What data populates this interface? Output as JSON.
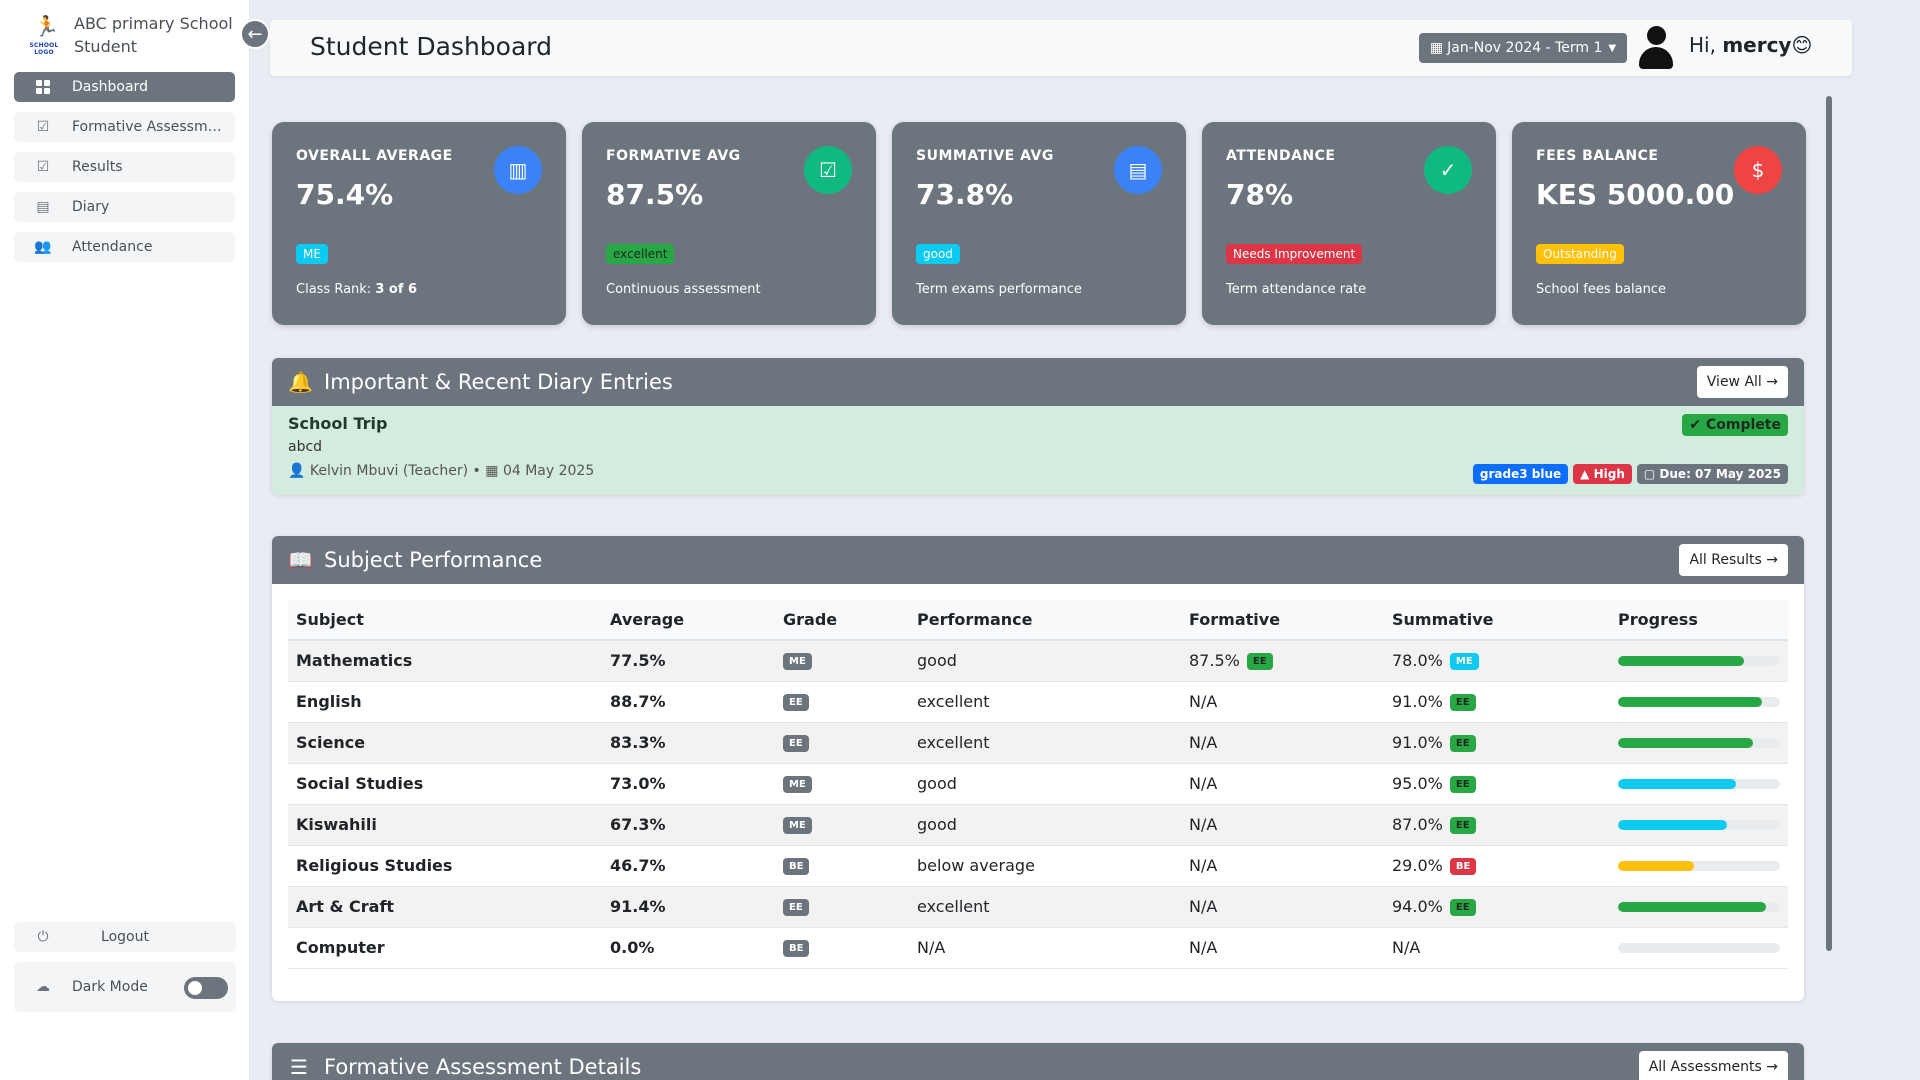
{
  "sidebar": {
    "school_name": "ABC primary School",
    "role": "Student",
    "logo_text": "SCHOOL LOGO",
    "items": [
      {
        "label": "Dashboard",
        "icon": "grid-icon"
      },
      {
        "label": "Formative Assessments",
        "icon": "checklist-icon"
      },
      {
        "label": "Results",
        "icon": "checklist-icon"
      },
      {
        "label": "Diary",
        "icon": "notebook-icon"
      },
      {
        "label": "Attendance",
        "icon": "user-list-icon"
      }
    ],
    "logout_label": "Logout",
    "dark_mode_label": "Dark Mode"
  },
  "header": {
    "title": "Student Dashboard",
    "term_label": "Jan-Nov 2024 - Term 1",
    "greeting_prefix": "Hi,",
    "user_name": "mercy",
    "emoji": "😊"
  },
  "cards": [
    {
      "label": "OVERALL AVERAGE",
      "value": "75.4%",
      "badge": "ME",
      "badge_color": "#0dcaf0",
      "note_prefix": "Class Rank: ",
      "note_strong": "3 of 6",
      "icon_color": "#3b82f6",
      "icon": "clipboard-chart-icon"
    },
    {
      "label": "FORMATIVE AVG",
      "value": "87.5%",
      "badge": "excellent",
      "badge_color": "#28a745",
      "note_prefix": "Continuous assessment",
      "note_strong": "",
      "icon_color": "#10b981",
      "icon": "clipboard-check-icon"
    },
    {
      "label": "SUMMATIVE AVG",
      "value": "73.8%",
      "badge": "good",
      "badge_color": "#0dcaf0",
      "note_prefix": "Term exams performance",
      "note_strong": "",
      "icon_color": "#3b82f6",
      "icon": "journal-icon"
    },
    {
      "label": "ATTENDANCE",
      "value": "78%",
      "badge": "Needs Improvement",
      "badge_color": "#dc3545",
      "note_prefix": "Term attendance rate",
      "note_strong": "",
      "icon_color": "#10b981",
      "icon": "calendar-check-icon"
    },
    {
      "label": "FEES BALANCE",
      "value": "KES 5000.00",
      "badge": "Outstanding",
      "badge_color": "#ffc107",
      "note_prefix": "School fees balance",
      "note_strong": "",
      "icon_color": "#ef4444",
      "icon": "money-icon"
    }
  ],
  "diary": {
    "title": "Important & Recent Diary Entries",
    "view_all_label": "View All →",
    "entry": {
      "title": "School Trip",
      "description": "abcd",
      "author": "Kelvin Mbuvi (Teacher)",
      "date": "04 May 2025",
      "status": "Complete",
      "tags": [
        {
          "label": "grade3 blue",
          "color": "#0d6efd"
        },
        {
          "label": "High",
          "color": "#dc3545"
        },
        {
          "label": "Due: 07 May 2025",
          "color": "#6c757d"
        }
      ]
    }
  },
  "subjects": {
    "title": "Subject Performance",
    "all_results_label": "All Results →",
    "columns": [
      "Subject",
      "Average",
      "Grade",
      "Performance",
      "Formative",
      "Summative",
      "Progress"
    ],
    "rows": [
      {
        "subject": "Mathematics",
        "average": "77.5%",
        "grade": "ME",
        "performance": "good",
        "formative": "87.5%",
        "formative_badge": "EE",
        "formative_badge_color": "#28a745",
        "summative": "78.0%",
        "summative_badge": "ME",
        "summative_badge_color": "#0dcaf0",
        "progress": 77.5,
        "progress_color": "#28a745"
      },
      {
        "subject": "English",
        "average": "88.7%",
        "grade": "EE",
        "performance": "excellent",
        "formative": "N/A",
        "formative_badge": "",
        "formative_badge_color": "",
        "summative": "91.0%",
        "summative_badge": "EE",
        "summative_badge_color": "#28a745",
        "progress": 88.7,
        "progress_color": "#28a745"
      },
      {
        "subject": "Science",
        "average": "83.3%",
        "grade": "EE",
        "performance": "excellent",
        "formative": "N/A",
        "formative_badge": "",
        "formative_badge_color": "",
        "summative": "91.0%",
        "summative_badge": "EE",
        "summative_badge_color": "#28a745",
        "progress": 83.3,
        "progress_color": "#28a745"
      },
      {
        "subject": "Social Studies",
        "average": "73.0%",
        "grade": "ME",
        "performance": "good",
        "formative": "N/A",
        "formative_badge": "",
        "formative_badge_color": "",
        "summative": "95.0%",
        "summative_badge": "EE",
        "summative_badge_color": "#28a745",
        "progress": 73.0,
        "progress_color": "#0dcaf0"
      },
      {
        "subject": "Kiswahili",
        "average": "67.3%",
        "grade": "ME",
        "performance": "good",
        "formative": "N/A",
        "formative_badge": "",
        "formative_badge_color": "",
        "summative": "87.0%",
        "summative_badge": "EE",
        "summative_badge_color": "#28a745",
        "progress": 67.3,
        "progress_color": "#0dcaf0"
      },
      {
        "subject": "Religious Studies",
        "average": "46.7%",
        "grade": "BE",
        "performance": "below average",
        "formative": "N/A",
        "formative_badge": "",
        "formative_badge_color": "",
        "summative": "29.0%",
        "summative_badge": "BE",
        "summative_badge_color": "#dc3545",
        "progress": 46.7,
        "progress_color": "#ffc107"
      },
      {
        "subject": "Art & Craft",
        "average": "91.4%",
        "grade": "EE",
        "performance": "excellent",
        "formative": "N/A",
        "formative_badge": "",
        "formative_badge_color": "",
        "summative": "94.0%",
        "summative_badge": "EE",
        "summative_badge_color": "#28a745",
        "progress": 91.4,
        "progress_color": "#28a745"
      },
      {
        "subject": "Computer",
        "average": "0.0%",
        "grade": "BE",
        "performance": "N/A",
        "formative": "N/A",
        "formative_badge": "",
        "formative_badge_color": "",
        "summative": "N/A",
        "summative_badge": "",
        "summative_badge_color": "",
        "progress": 0,
        "progress_color": "#28a745"
      }
    ]
  },
  "formative_details": {
    "title": "Formative Assessment Details",
    "all_assessments_label": "All Assessments →"
  }
}
